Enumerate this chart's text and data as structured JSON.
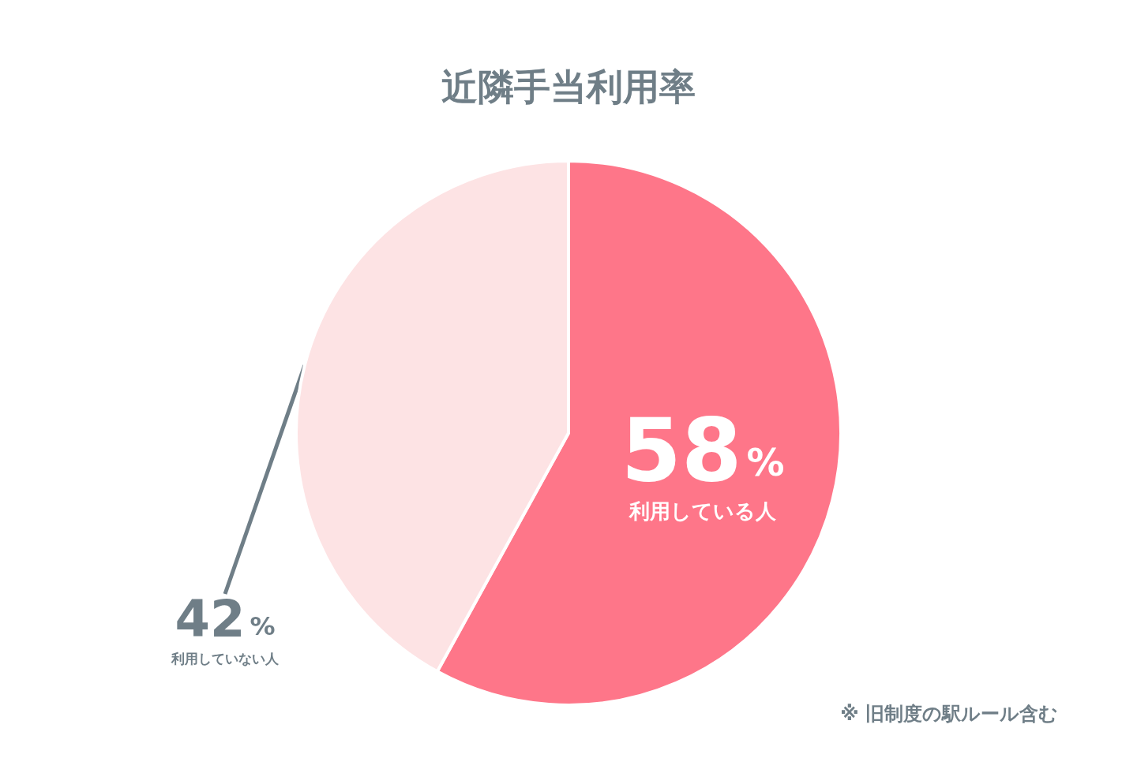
{
  "chart_data": {
    "type": "pie",
    "title": "近隣手当利用率",
    "categories": [
      "利用している人",
      "利用していない人"
    ],
    "values": [
      58,
      42
    ],
    "value_labels": [
      "58%",
      "42%"
    ],
    "colors": [
      "#fe7689",
      "#fde3e4"
    ],
    "legend": false,
    "annotations": [
      "※ 旧制度の駅ルール含む"
    ]
  }
}
